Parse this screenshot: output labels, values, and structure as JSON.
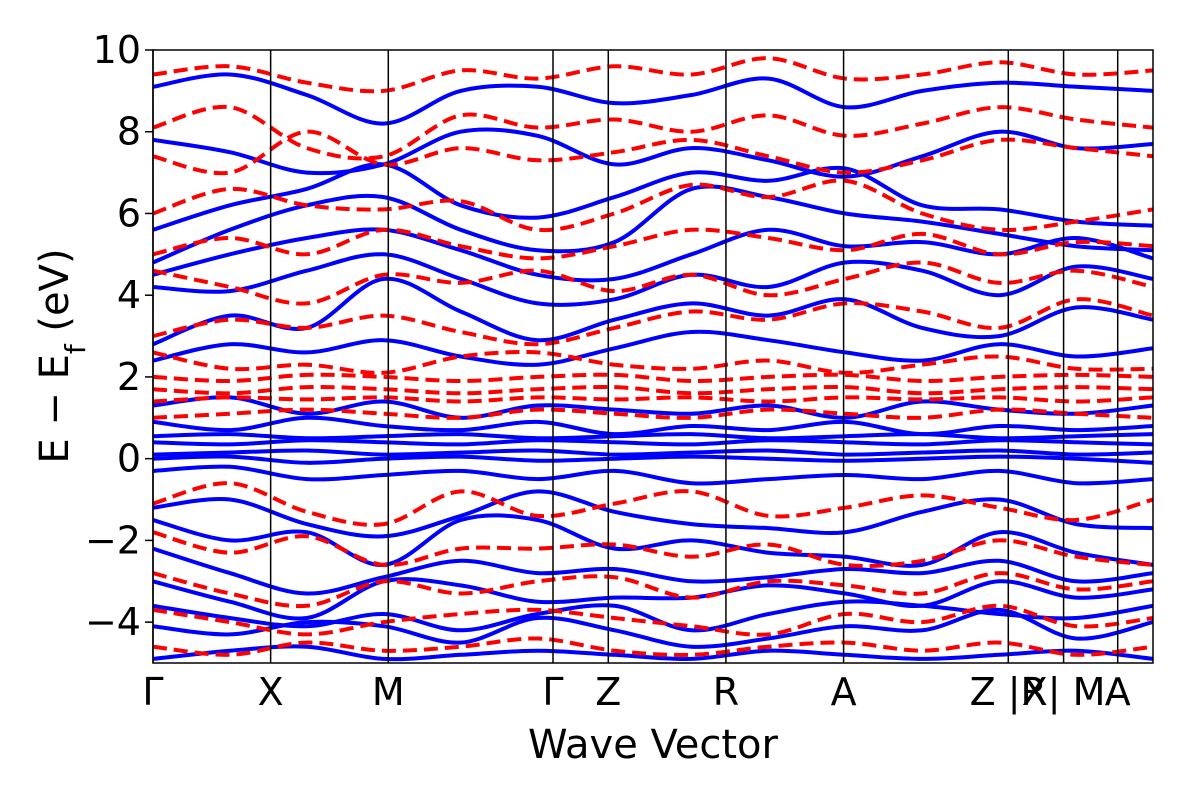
{
  "chart_data": {
    "type": "line",
    "title": "",
    "xlabel": "Wave Vector",
    "ylabel": "E − E_f (eV)",
    "ylabel_parts": {
      "main": "E − E",
      "sub": "f",
      "unit": " (eV)"
    },
    "ylim": [
      -5,
      10
    ],
    "yticks": [
      -4,
      -2,
      0,
      2,
      4,
      6,
      8,
      10
    ],
    "ytick_labels": [
      "−4",
      "−2",
      "0",
      "2",
      "4",
      "6",
      "8",
      "10"
    ],
    "xlim": [
      0,
      8.5
    ],
    "high_symmetry_points": [
      {
        "label": "Γ",
        "x": 0.0
      },
      {
        "label": "X",
        "x": 1.0
      },
      {
        "label": "M",
        "x": 2.0
      },
      {
        "label": "Γ",
        "x": 3.4
      },
      {
        "label": "Z",
        "x": 3.87
      },
      {
        "label": "R",
        "x": 4.87
      },
      {
        "label": "A",
        "x": 5.87
      },
      {
        "label": "Z |R",
        "x": 7.27
      },
      {
        "label": "X| M",
        "x": 7.74
      },
      {
        "label": "A",
        "x": 8.2
      }
    ],
    "vertical_lines": [
      0.0,
      1.0,
      2.0,
      3.4,
      3.87,
      4.87,
      5.87,
      7.27,
      7.74,
      8.2
    ],
    "path_segments": [
      [
        0.0,
        7.27
      ],
      [
        7.27,
        7.74
      ],
      [
        7.74,
        8.2
      ]
    ],
    "series": [
      {
        "style": "solid",
        "color": "#0000ff",
        "bands": [
          [
            -4.9,
            -4.7,
            -4.6,
            -4.9,
            -4.8,
            -4.7,
            -4.8,
            -4.9,
            -4.7,
            -4.8,
            -4.9,
            -4.8,
            -4.7,
            -4.9
          ],
          [
            -4.1,
            -4.3,
            -4.0,
            -4.1,
            -4.5,
            -3.9,
            -4.2,
            -4.6,
            -4.4,
            -4.1,
            -4.2,
            -3.7,
            -4.4,
            -4.0
          ],
          [
            -3.6,
            -3.9,
            -4.1,
            -3.8,
            -4.2,
            -3.8,
            -3.6,
            -4.2,
            -3.8,
            -3.5,
            -3.6,
            -3.8,
            -3.9,
            -3.6
          ],
          [
            -3.0,
            -3.5,
            -3.9,
            -3.0,
            -3.1,
            -3.5,
            -3.4,
            -3.4,
            -3.1,
            -3.3,
            -3.6,
            -3.0,
            -3.4,
            -3.2
          ],
          [
            -2.2,
            -2.8,
            -3.3,
            -2.9,
            -2.5,
            -2.8,
            -2.7,
            -3.0,
            -2.9,
            -2.7,
            -2.8,
            -2.5,
            -3.0,
            -2.8
          ],
          [
            -1.5,
            -2.0,
            -1.8,
            -2.6,
            -1.5,
            -1.5,
            -2.2,
            -2.0,
            -2.3,
            -2.4,
            -2.6,
            -1.8,
            -2.3,
            -2.6
          ],
          [
            -1.2,
            -1.0,
            -1.6,
            -1.9,
            -1.4,
            -0.8,
            -1.3,
            -1.6,
            -1.7,
            -1.8,
            -1.3,
            -1.0,
            -1.6,
            -1.7
          ],
          [
            -0.3,
            -0.2,
            -0.5,
            -0.4,
            -0.3,
            -0.5,
            -0.3,
            -0.6,
            -0.5,
            -0.4,
            -0.5,
            -0.3,
            -0.6,
            -0.5
          ],
          [
            0.0,
            0.05,
            -0.1,
            0.0,
            0.05,
            -0.05,
            0.0,
            0.05,
            0.0,
            -0.05,
            0.0,
            0.05,
            0.0,
            -0.1
          ],
          [
            0.1,
            0.15,
            0.2,
            0.1,
            0.15,
            0.2,
            0.1,
            0.15,
            0.2,
            0.1,
            0.15,
            0.2,
            0.1,
            0.15
          ],
          [
            0.4,
            0.35,
            0.45,
            0.4,
            0.35,
            0.45,
            0.4,
            0.35,
            0.45,
            0.4,
            0.35,
            0.45,
            0.4,
            0.35
          ],
          [
            0.55,
            0.6,
            0.5,
            0.55,
            0.6,
            0.5,
            0.55,
            0.6,
            0.5,
            0.55,
            0.6,
            0.5,
            0.55,
            0.6
          ],
          [
            0.9,
            0.7,
            1.0,
            0.8,
            0.7,
            0.9,
            0.6,
            0.8,
            0.7,
            0.9,
            0.6,
            0.8,
            0.7,
            0.8
          ],
          [
            1.3,
            1.5,
            1.1,
            1.4,
            1.0,
            1.3,
            1.2,
            1.1,
            1.3,
            1.0,
            1.4,
            1.2,
            1.1,
            1.3
          ],
          [
            2.4,
            2.8,
            2.6,
            2.9,
            2.5,
            2.3,
            2.7,
            3.1,
            2.9,
            2.6,
            2.4,
            2.8,
            2.5,
            2.7
          ],
          [
            2.8,
            3.5,
            3.2,
            4.4,
            3.6,
            2.9,
            3.4,
            3.8,
            3.5,
            3.9,
            3.2,
            3.0,
            3.7,
            3.4
          ],
          [
            4.2,
            4.1,
            4.6,
            5.0,
            4.4,
            3.8,
            3.9,
            4.5,
            4.2,
            4.8,
            4.6,
            4.0,
            4.7,
            4.4
          ],
          [
            4.5,
            5.0,
            5.4,
            5.6,
            5.1,
            4.5,
            4.4,
            5.0,
            5.6,
            5.2,
            5.3,
            5.0,
            5.4,
            4.9
          ],
          [
            4.8,
            5.6,
            6.2,
            6.4,
            5.6,
            5.1,
            5.3,
            6.6,
            6.4,
            6.0,
            5.8,
            5.5,
            5.2,
            5.1
          ],
          [
            5.6,
            6.2,
            6.6,
            7.2,
            6.2,
            5.9,
            6.4,
            7.0,
            6.8,
            7.1,
            6.2,
            6.1,
            5.8,
            5.7
          ],
          [
            7.8,
            7.5,
            7.0,
            7.2,
            8.0,
            7.9,
            7.2,
            7.6,
            7.3,
            6.9,
            7.4,
            8.0,
            7.6,
            7.7
          ],
          [
            9.1,
            9.4,
            8.9,
            8.2,
            9.0,
            9.1,
            8.7,
            8.9,
            9.3,
            8.6,
            9.0,
            9.2,
            9.1,
            9.0
          ]
        ]
      },
      {
        "style": "dashed",
        "color": "#ff0000",
        "bands": [
          [
            -4.6,
            -4.8,
            -4.5,
            -4.7,
            -4.6,
            -4.4,
            -4.7,
            -4.8,
            -4.6,
            -4.5,
            -4.7,
            -4.5,
            -4.8,
            -4.6
          ],
          [
            -3.7,
            -4.0,
            -4.3,
            -4.0,
            -3.8,
            -3.7,
            -3.9,
            -4.1,
            -4.3,
            -3.8,
            -4.0,
            -3.6,
            -4.1,
            -3.9
          ],
          [
            -2.8,
            -3.3,
            -3.6,
            -3.0,
            -3.3,
            -3.0,
            -2.9,
            -3.4,
            -3.0,
            -3.1,
            -3.3,
            -2.8,
            -3.2,
            -3.0
          ],
          [
            -1.8,
            -2.3,
            -1.9,
            -2.6,
            -2.2,
            -2.2,
            -2.1,
            -2.4,
            -2.1,
            -2.6,
            -2.5,
            -2.0,
            -2.4,
            -2.6
          ],
          [
            -1.1,
            -0.6,
            -1.3,
            -1.6,
            -0.8,
            -1.4,
            -1.1,
            -0.8,
            -1.4,
            -1.2,
            -0.9,
            -1.2,
            -1.5,
            -1.0
          ],
          [
            1.0,
            1.1,
            1.2,
            1.1,
            1.0,
            1.2,
            1.1,
            1.0,
            1.2,
            1.1,
            1.0,
            1.2,
            1.1,
            1.0
          ],
          [
            1.4,
            1.5,
            1.45,
            1.5,
            1.4,
            1.5,
            1.45,
            1.5,
            1.4,
            1.5,
            1.45,
            1.5,
            1.4,
            1.5
          ],
          [
            1.7,
            1.6,
            1.75,
            1.7,
            1.6,
            1.7,
            1.75,
            1.6,
            1.7,
            1.75,
            1.6,
            1.7,
            1.75,
            1.7
          ],
          [
            2.0,
            1.9,
            2.05,
            2.0,
            1.9,
            2.0,
            2.05,
            1.9,
            2.0,
            2.05,
            1.9,
            2.0,
            2.05,
            2.0
          ],
          [
            2.6,
            2.2,
            2.3,
            2.1,
            2.5,
            2.6,
            2.3,
            2.2,
            2.4,
            2.1,
            2.3,
            2.5,
            2.2,
            2.2
          ],
          [
            3.0,
            3.4,
            3.2,
            3.5,
            3.1,
            2.8,
            3.2,
            3.6,
            3.4,
            3.8,
            3.6,
            3.2,
            3.9,
            3.5
          ],
          [
            4.6,
            4.2,
            3.8,
            4.5,
            4.3,
            4.6,
            4.1,
            4.5,
            4.0,
            4.4,
            4.8,
            4.3,
            4.6,
            4.2
          ],
          [
            5.0,
            5.4,
            5.0,
            5.6,
            5.2,
            4.9,
            5.2,
            5.6,
            5.4,
            5.1,
            5.5,
            5.0,
            5.3,
            5.2
          ],
          [
            6.0,
            6.6,
            6.2,
            6.1,
            6.3,
            5.6,
            6.0,
            6.7,
            6.4,
            6.8,
            6.0,
            5.6,
            5.8,
            6.1
          ],
          [
            7.4,
            7.0,
            8.0,
            7.2,
            7.6,
            7.3,
            7.5,
            7.8,
            7.4,
            7.0,
            7.3,
            7.8,
            7.6,
            7.4
          ],
          [
            8.1,
            8.6,
            7.6,
            7.4,
            8.4,
            8.1,
            8.3,
            8.0,
            8.4,
            7.9,
            8.2,
            8.6,
            8.3,
            8.1
          ],
          [
            9.4,
            9.6,
            9.2,
            9.0,
            9.5,
            9.3,
            9.6,
            9.4,
            9.8,
            9.3,
            9.4,
            9.7,
            9.4,
            9.5
          ]
        ]
      }
    ]
  }
}
